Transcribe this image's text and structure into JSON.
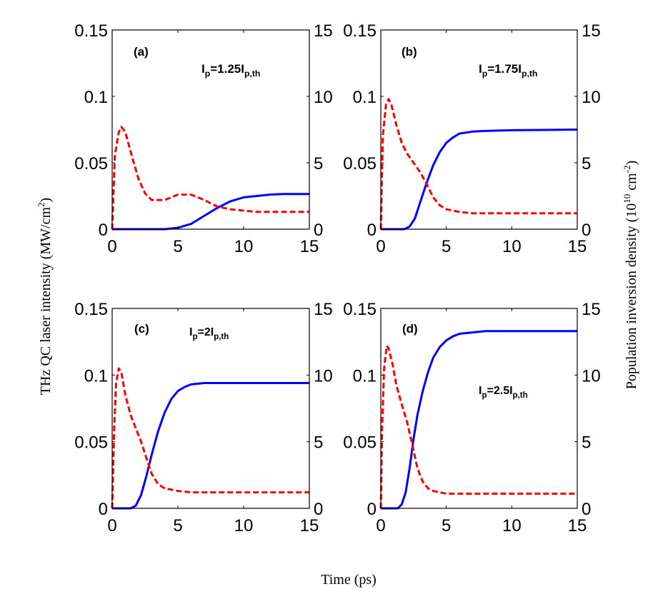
{
  "figure": {
    "xlabel": "Time (ps)",
    "ylabel_left": "THz QC laser intensity (MW/cm",
    "ylabel_left_sup": "2",
    "ylabel_left_end": ")",
    "ylabel_right": "Population inversion density (10",
    "ylabel_right_sup1": "10",
    "ylabel_right_mid": " cm",
    "ylabel_right_sup2": "-2",
    "ylabel_right_end": ")"
  },
  "chart_data": [
    {
      "type": "line",
      "panel_label": "(a)",
      "annotation": {
        "main": "I",
        "sub1": "p",
        "mid": "=1.25I",
        "sub2": "p,th"
      },
      "xlim": [
        0,
        15
      ],
      "ylim_left": [
        0,
        0.15
      ],
      "ylim_right": [
        0,
        15
      ],
      "xticks": [
        "0",
        "5",
        "10",
        "15"
      ],
      "yticks_left": [
        "0",
        "0.05",
        "0.1",
        "0.15"
      ],
      "yticks_right": [
        "0",
        "5",
        "10",
        "15"
      ],
      "series": [
        {
          "axis": "left",
          "color": "#0000ff",
          "dash": "solid",
          "x": [
            0,
            4,
            5,
            6,
            7,
            8,
            9,
            10,
            11,
            12,
            13,
            15
          ],
          "y": [
            0,
            0,
            0.001,
            0.004,
            0.01,
            0.016,
            0.021,
            0.024,
            0.025,
            0.026,
            0.0265,
            0.0265
          ]
        },
        {
          "axis": "right",
          "color": "#ff0000",
          "dash": "dashed",
          "x": [
            0,
            0.2,
            0.5,
            0.7,
            1.0,
            1.5,
            2.0,
            2.5,
            3,
            4,
            5,
            6,
            7,
            8,
            9,
            10,
            11,
            15
          ],
          "y": [
            0,
            5.5,
            7.3,
            7.7,
            7.3,
            5.5,
            3.8,
            2.7,
            2.2,
            2.2,
            2.6,
            2.6,
            2.2,
            1.7,
            1.5,
            1.4,
            1.3,
            1.3
          ]
        }
      ]
    },
    {
      "type": "line",
      "panel_label": "(b)",
      "annotation": {
        "main": "I",
        "sub1": "p",
        "mid": "=1.75I",
        "sub2": "p,th"
      },
      "xlim": [
        0,
        15
      ],
      "ylim_left": [
        0,
        0.15
      ],
      "ylim_right": [
        0,
        15
      ],
      "xticks": [
        "0",
        "5",
        "10",
        "15"
      ],
      "yticks_left": [
        "0",
        "0.05",
        "0.1",
        "0.15"
      ],
      "yticks_right": [
        "0",
        "5",
        "10",
        "15"
      ],
      "series": [
        {
          "axis": "left",
          "color": "#0000ff",
          "dash": "solid",
          "x": [
            0,
            1.8,
            2.2,
            2.6,
            3,
            3.5,
            4,
            4.5,
            5,
            5.5,
            6,
            7,
            8,
            10,
            15
          ],
          "y": [
            0,
            0,
            0.002,
            0.008,
            0.02,
            0.035,
            0.048,
            0.058,
            0.065,
            0.069,
            0.072,
            0.0735,
            0.074,
            0.0745,
            0.075
          ]
        },
        {
          "axis": "right",
          "color": "#ff0000",
          "dash": "dashed",
          "x": [
            0,
            0.15,
            0.4,
            0.6,
            0.8,
            1.2,
            1.6,
            2.0,
            2.5,
            3,
            3.5,
            4,
            4.5,
            5,
            6,
            7,
            15
          ],
          "y": [
            0,
            7,
            9.4,
            9.8,
            9.4,
            7.8,
            6.5,
            5.7,
            5.0,
            4.3,
            3.4,
            2.4,
            1.8,
            1.5,
            1.3,
            1.2,
            1.2
          ]
        }
      ]
    },
    {
      "type": "line",
      "panel_label": "(c)",
      "annotation": {
        "main": "I",
        "sub1": "p",
        "mid": "=2I",
        "sub2": "p,th"
      },
      "xlim": [
        0,
        15
      ],
      "ylim_left": [
        0,
        0.15
      ],
      "ylim_right": [
        0,
        15
      ],
      "xticks": [
        "0",
        "5",
        "10",
        "15"
      ],
      "yticks_left": [
        "0",
        "0.05",
        "0.1",
        "0.15"
      ],
      "yticks_right": [
        "0",
        "5",
        "10",
        "15"
      ],
      "series": [
        {
          "axis": "left",
          "color": "#0000ff",
          "dash": "solid",
          "x": [
            0,
            1.4,
            1.8,
            2.2,
            2.6,
            3,
            3.5,
            4,
            4.5,
            5,
            5.5,
            6,
            7,
            15
          ],
          "y": [
            0,
            0,
            0.002,
            0.01,
            0.024,
            0.04,
            0.058,
            0.072,
            0.082,
            0.088,
            0.091,
            0.093,
            0.094,
            0.094
          ]
        },
        {
          "axis": "right",
          "color": "#ff0000",
          "dash": "dashed",
          "x": [
            0,
            0.15,
            0.3,
            0.5,
            0.7,
            1.0,
            1.4,
            1.8,
            2.2,
            2.6,
            3,
            3.5,
            4,
            5,
            6,
            15
          ],
          "y": [
            0,
            6,
            9.4,
            10.5,
            10.2,
            8.5,
            7.0,
            6.0,
            5.0,
            3.8,
            2.6,
            1.8,
            1.5,
            1.3,
            1.2,
            1.2
          ]
        }
      ]
    },
    {
      "type": "line",
      "panel_label": "(d)",
      "annotation": {
        "main": "I",
        "sub1": "p",
        "mid": "=2.5I",
        "sub2": "p,th"
      },
      "xlim": [
        0,
        15
      ],
      "ylim_left": [
        0,
        0.15
      ],
      "ylim_right": [
        0,
        15
      ],
      "xticks": [
        "0",
        "5",
        "10",
        "15"
      ],
      "yticks_left": [
        "0",
        "0.05",
        "0.1",
        "0.15"
      ],
      "yticks_right": [
        "0",
        "5",
        "10",
        "15"
      ],
      "series": [
        {
          "axis": "left",
          "color": "#0000ff",
          "dash": "solid",
          "x": [
            0,
            1.3,
            1.6,
            1.9,
            2.2,
            2.5,
            2.8,
            3.2,
            3.6,
            4,
            4.5,
            5,
            5.5,
            6,
            7,
            8,
            15
          ],
          "y": [
            0,
            0,
            0.003,
            0.012,
            0.03,
            0.052,
            0.07,
            0.088,
            0.102,
            0.113,
            0.121,
            0.126,
            0.129,
            0.131,
            0.132,
            0.133,
            0.133
          ]
        },
        {
          "axis": "right",
          "color": "#ff0000",
          "dash": "dashed",
          "x": [
            0,
            0.1,
            0.25,
            0.45,
            0.6,
            0.9,
            1.2,
            1.6,
            2.0,
            2.4,
            2.8,
            3.2,
            3.6,
            4,
            5,
            15
          ],
          "y": [
            0,
            6,
            10.5,
            12.2,
            12.0,
            10.8,
            9.2,
            7.8,
            6.5,
            4.8,
            3.0,
            2.0,
            1.5,
            1.3,
            1.1,
            1.1
          ]
        }
      ]
    }
  ]
}
